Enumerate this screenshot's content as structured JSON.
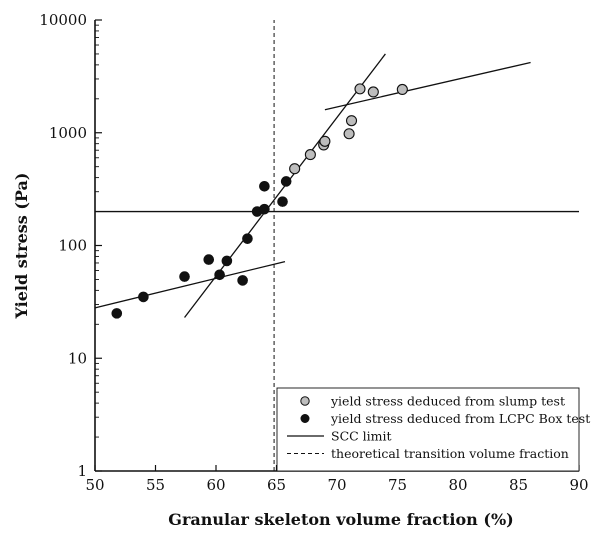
{
  "chart_data": {
    "type": "scatter",
    "xlabel": "Granular skeleton volume fraction (%)",
    "ylabel": "Yield stress (Pa)",
    "xlim": [
      50,
      90
    ],
    "ylim": [
      1,
      10000
    ],
    "yscale": "log",
    "xticks": [
      "50",
      "55",
      "60",
      "65",
      "70",
      "75",
      "80",
      "85",
      "90"
    ],
    "yticks": [
      "1",
      "10",
      "100",
      "1000",
      "10000"
    ],
    "grid": false,
    "legend_position": "bottom-right",
    "series": [
      {
        "name": "yield stress deduced from slump test",
        "marker": "circle",
        "color": "#bdbdbd",
        "points": [
          [
            66.5,
            480
          ],
          [
            67.8,
            640
          ],
          [
            68.9,
            780
          ],
          [
            69.0,
            840
          ],
          [
            71.0,
            980
          ],
          [
            71.2,
            1280
          ],
          [
            71.9,
            2450
          ],
          [
            73.0,
            2300
          ],
          [
            75.4,
            2420
          ]
        ]
      },
      {
        "name": "yield stress deduced from LCPC Box test",
        "marker": "circle",
        "color": "#111111",
        "points": [
          [
            51.8,
            25
          ],
          [
            54.0,
            35
          ],
          [
            57.4,
            53
          ],
          [
            59.4,
            75
          ],
          [
            60.3,
            55
          ],
          [
            60.9,
            73
          ],
          [
            62.2,
            49
          ],
          [
            62.6,
            115
          ],
          [
            63.4,
            200
          ],
          [
            64.0,
            210
          ],
          [
            64.0,
            335
          ],
          [
            65.5,
            245
          ],
          [
            65.8,
            370
          ]
        ]
      }
    ],
    "lines": [
      {
        "name": "SCC limit",
        "style": "solid",
        "x": [
          50,
          90
        ],
        "y": [
          200,
          200
        ]
      },
      {
        "name": "theoretical transition volume fraction",
        "style": "dashed",
        "x": [
          64.8,
          64.8
        ],
        "y": [
          1,
          10000
        ]
      },
      {
        "name": "",
        "style": "solid",
        "x": [
          50,
          65.7
        ],
        "y": [
          28,
          72
        ]
      },
      {
        "name": "",
        "style": "solid",
        "x": [
          57.4,
          74.0
        ],
        "y": [
          23,
          5000
        ]
      },
      {
        "name": "",
        "style": "solid",
        "x": [
          69.0,
          86.0
        ],
        "y": [
          1600,
          4200
        ]
      }
    ],
    "legend": [
      {
        "label": "yield stress deduced from slump test",
        "symbol": "grey-circle"
      },
      {
        "label": "yield stress deduced from LCPC Box test",
        "symbol": "black-circle"
      },
      {
        "label": "SCC limit",
        "symbol": "solid-line"
      },
      {
        "label": "theoretical transition volume fraction",
        "symbol": "dashed-line"
      }
    ]
  }
}
